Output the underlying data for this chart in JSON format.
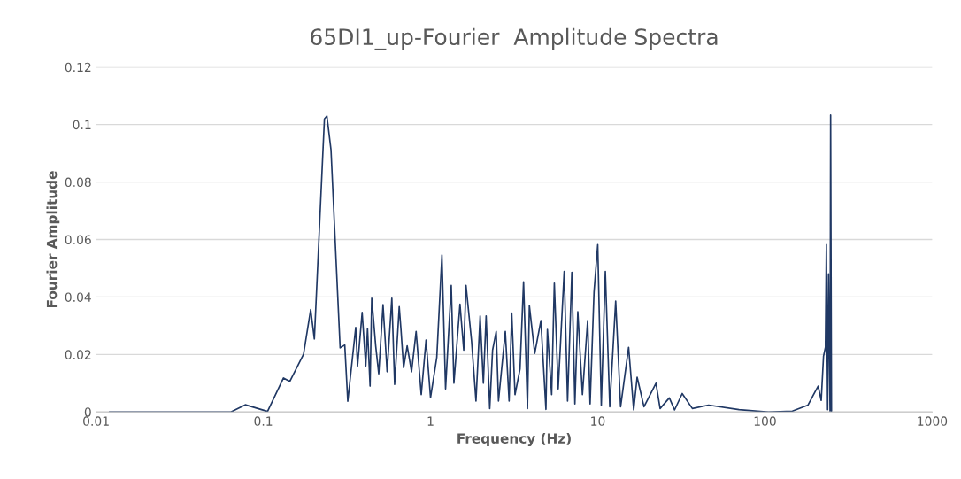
{
  "chart_data": {
    "type": "line",
    "title": "65DI1_up-Fourier  Amplitude Spectra",
    "xlabel": "Frequency (Hz)",
    "ylabel": "Fourier Amplitude",
    "log": "x",
    "xlim": [
      0.01,
      1000
    ],
    "xticks": [
      0.01,
      0.1,
      1,
      10,
      100,
      1000
    ],
    "ylim": [
      0,
      0.12
    ],
    "yticks": [
      0,
      0.02,
      0.04,
      0.06,
      0.08,
      0.1,
      0.12
    ],
    "grid": "y",
    "line_style": "solid",
    "series": [
      {
        "color": "#203864",
        "x": [
          0.012,
          0.064,
          0.078,
          0.106,
          0.132,
          0.144,
          0.174,
          0.192,
          0.202,
          0.232,
          0.24,
          0.254,
          0.288,
          0.307,
          0.32,
          0.357,
          0.366,
          0.39,
          0.41,
          0.42,
          0.435,
          0.445,
          0.47,
          0.49,
          0.52,
          0.55,
          0.587,
          0.61,
          0.65,
          0.665,
          0.69,
          0.725,
          0.77,
          0.82,
          0.88,
          0.94,
          1.0,
          1.09,
          1.17,
          1.23,
          1.33,
          1.38,
          1.5,
          1.58,
          1.63,
          1.76,
          1.87,
          1.98,
          2.07,
          2.15,
          2.26,
          2.35,
          2.47,
          2.55,
          2.8,
          2.95,
          3.06,
          3.2,
          3.43,
          3.6,
          3.8,
          3.9,
          4.2,
          4.57,
          4.9,
          5.0,
          5.3,
          5.5,
          5.8,
          6.3,
          6.6,
          7.0,
          7.3,
          7.6,
          8.1,
          8.7,
          9.0,
          9.5,
          10,
          10.5,
          11.1,
          11.8,
          12.8,
          13.7,
          15.3,
          16.4,
          17.2,
          18.9,
          22.3,
          23.6,
          26.8,
          28.8,
          32,
          36.8,
          46,
          70,
          105,
          146,
          181,
          195,
          208,
          217,
          224,
          230,
          233,
          237,
          240,
          245,
          247,
          250
        ],
        "values": [
          0,
          0,
          0.0025,
          0.0002,
          0.0118,
          0.0106,
          0.0201,
          0.0356,
          0.0254,
          0.102,
          0.103,
          0.0912,
          0.0223,
          0.0233,
          0.0037,
          0.0294,
          0.016,
          0.0346,
          0.016,
          0.029,
          0.009,
          0.0396,
          0.023,
          0.0133,
          0.0373,
          0.014,
          0.0396,
          0.0096,
          0.0366,
          0.029,
          0.0154,
          0.023,
          0.014,
          0.028,
          0.006,
          0.025,
          0.005,
          0.019,
          0.0546,
          0.008,
          0.044,
          0.01,
          0.0375,
          0.0215,
          0.044,
          0.0246,
          0.0038,
          0.0334,
          0.01,
          0.0334,
          0.0012,
          0.0215,
          0.028,
          0.0038,
          0.028,
          0.0038,
          0.0344,
          0.006,
          0.015,
          0.0453,
          0.0012,
          0.037,
          0.0204,
          0.0318,
          0.0009,
          0.0287,
          0.006,
          0.0448,
          0.008,
          0.0489,
          0.0038,
          0.0486,
          0.0028,
          0.0349,
          0.006,
          0.0318,
          0.0028,
          0.0417,
          0.0582,
          0.0023,
          0.0489,
          0.0018,
          0.0386,
          0.0018,
          0.0225,
          0.0007,
          0.0121,
          0.0018,
          0.01,
          0.0012,
          0.0049,
          0.0007,
          0.0064,
          0.0012,
          0.0024,
          0.0008,
          0,
          0.0003,
          0.0024,
          0.006,
          0.009,
          0.004,
          0.0194,
          0.0225,
          0.0582,
          0.0008,
          0.048,
          0.0003,
          0.1033,
          0.0003
        ]
      }
    ]
  }
}
